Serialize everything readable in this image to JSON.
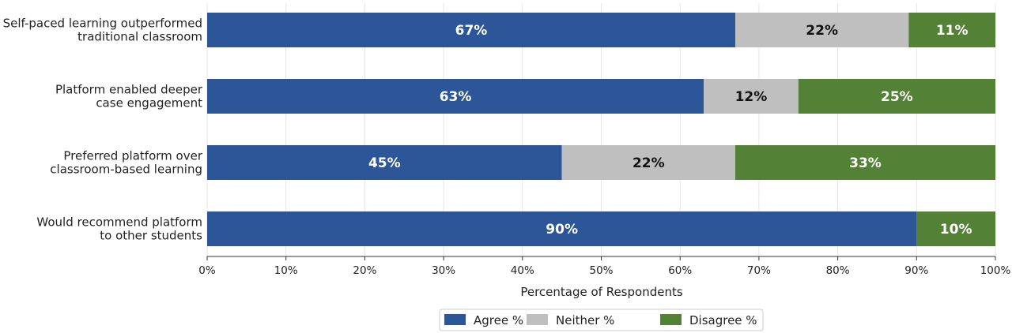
{
  "chart_data": {
    "type": "bar",
    "orientation": "horizontal",
    "stacked": true,
    "categories": [
      [
        "Self-paced learning outperformed",
        "traditional classroom"
      ],
      [
        "Platform enabled deeper",
        "case engagement"
      ],
      [
        "Preferred platform over",
        "classroom-based learning"
      ],
      [
        "Would recommend platform",
        "to other students"
      ]
    ],
    "series": [
      {
        "name": "Agree %",
        "color": "#2c5697",
        "label_color": "#ffffff",
        "values": [
          67,
          63,
          45,
          90
        ]
      },
      {
        "name": "Neither %",
        "color": "#bfbfbf",
        "label_color": "#111111",
        "values": [
          22,
          12,
          22,
          0
        ]
      },
      {
        "name": "Disagree %",
        "color": "#538135",
        "label_color": "#ffffff",
        "values": [
          11,
          25,
          33,
          10
        ]
      }
    ],
    "xlabel": "Percentage of Respondents",
    "ylabel": "",
    "xlim": [
      0,
      100
    ],
    "xticks": [
      0,
      10,
      20,
      30,
      40,
      50,
      60,
      70,
      80,
      90,
      100
    ],
    "tick_format": "{v}%",
    "value_label_format": "{v}%",
    "grid": "vertical",
    "legend_position": "bottom-center"
  }
}
